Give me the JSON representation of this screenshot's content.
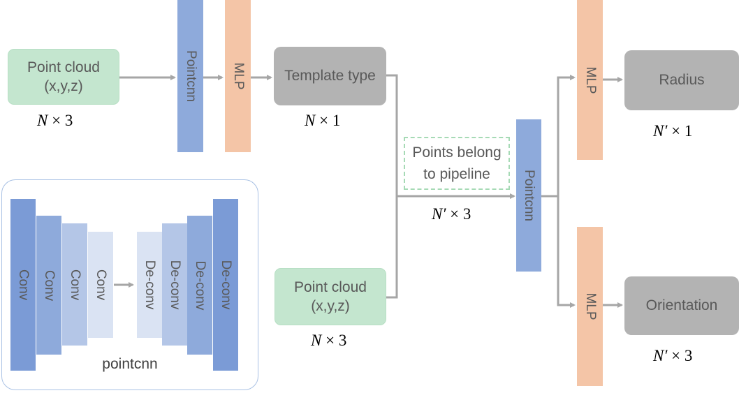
{
  "colors": {
    "input_green": "#c4e6cf",
    "output_gray": "#b3b3b3",
    "pointcnn_blue": "#8eaadb",
    "mlp_peach": "#f4c5a7",
    "arrow_gray": "#a6a6a6",
    "dashed_green": "#a6dab5"
  },
  "nodes": {
    "point_cloud_top": {
      "line1": "Point cloud",
      "line2": "(x,y,z)"
    },
    "pointcnn_1": "Pointcnn",
    "mlp_1": "MLP",
    "template_type": "Template type",
    "points_belong": {
      "line1": "Points belong",
      "line2": "to pipeline"
    },
    "point_cloud_bottom": {
      "line1": "Point cloud",
      "line2": "(x,y,z)"
    },
    "pointcnn_2": "Pointcnn",
    "mlp_radius": "MLP",
    "mlp_orientation": "MLP",
    "radius": "Radius",
    "orientation": "Orientation"
  },
  "dims": {
    "point_cloud_top": {
      "var": "N",
      "rest": "× 3"
    },
    "template_type": {
      "var": "N",
      "rest": "× 1"
    },
    "points_belong": {
      "var": "N′",
      "rest": "× 3"
    },
    "point_cloud_bottom": {
      "var": "N",
      "rest": "× 3"
    },
    "radius": {
      "var": "N′",
      "rest": "× 1"
    },
    "orientation": {
      "var": "N′",
      "rest": "× 3"
    }
  },
  "legend": {
    "caption": "pointcnn",
    "conv_layers": [
      "Conv",
      "Conv",
      "Conv",
      "Conv"
    ],
    "deconv_layers": [
      "De-conv",
      "De-conv",
      "De-conv",
      "De-conv"
    ]
  }
}
